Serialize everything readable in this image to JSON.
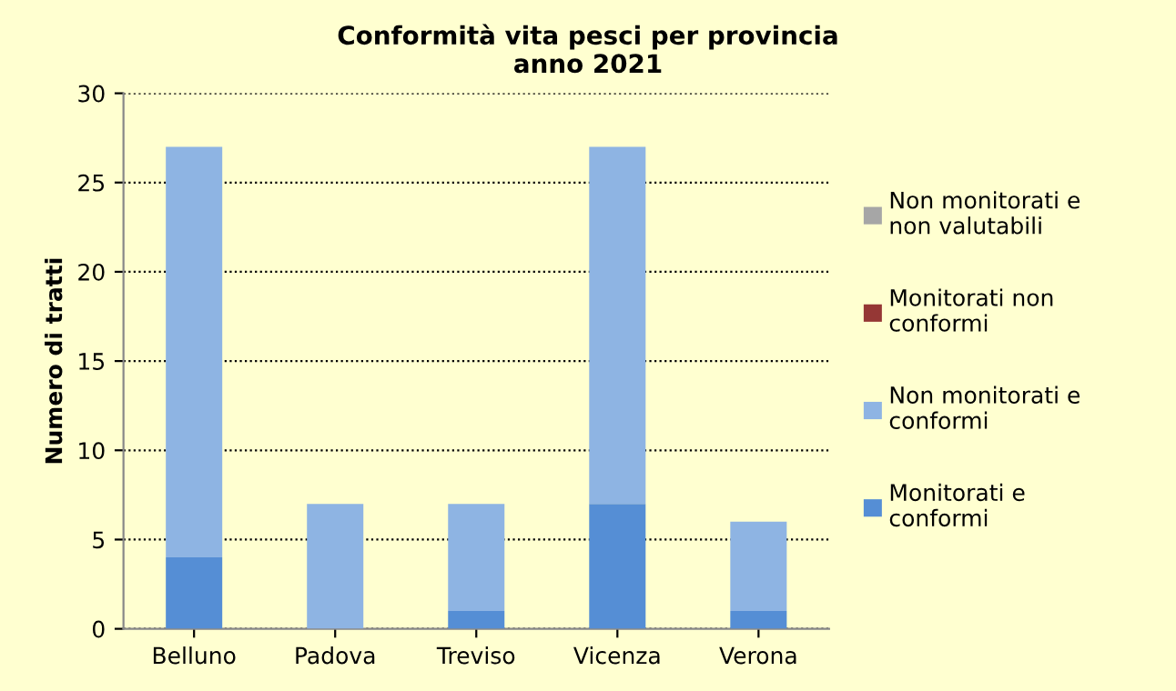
{
  "chart_data": {
    "type": "bar",
    "title": "Conformità vita pesci per provincia\nanno 2021",
    "ylabel": "Numero di tratti",
    "categories": [
      "Belluno",
      "Padova",
      "Treviso",
      "Vicenza",
      "Verona"
    ],
    "stacked": true,
    "series": [
      {
        "name": "Monitorati e\nconformi",
        "color": "#558ed5",
        "values": [
          4,
          0,
          1,
          7,
          1
        ]
      },
      {
        "name": "Non monitorati e\nconformi",
        "color": "#8eb4e3",
        "values": [
          23,
          7,
          6,
          20,
          5
        ]
      },
      {
        "name": "Monitorati non\nconformi",
        "color": "#953735",
        "values": [
          0,
          0,
          0,
          0,
          0
        ]
      },
      {
        "name": "Non monitorati e\nnon valutabili",
        "color": "#a6a6a6",
        "values": [
          0,
          0,
          0,
          0,
          0
        ]
      }
    ],
    "ylim": [
      0,
      30
    ],
    "yticks": [
      0,
      5,
      10,
      15,
      20,
      25,
      30
    ],
    "grid": "y",
    "legend": "right"
  }
}
